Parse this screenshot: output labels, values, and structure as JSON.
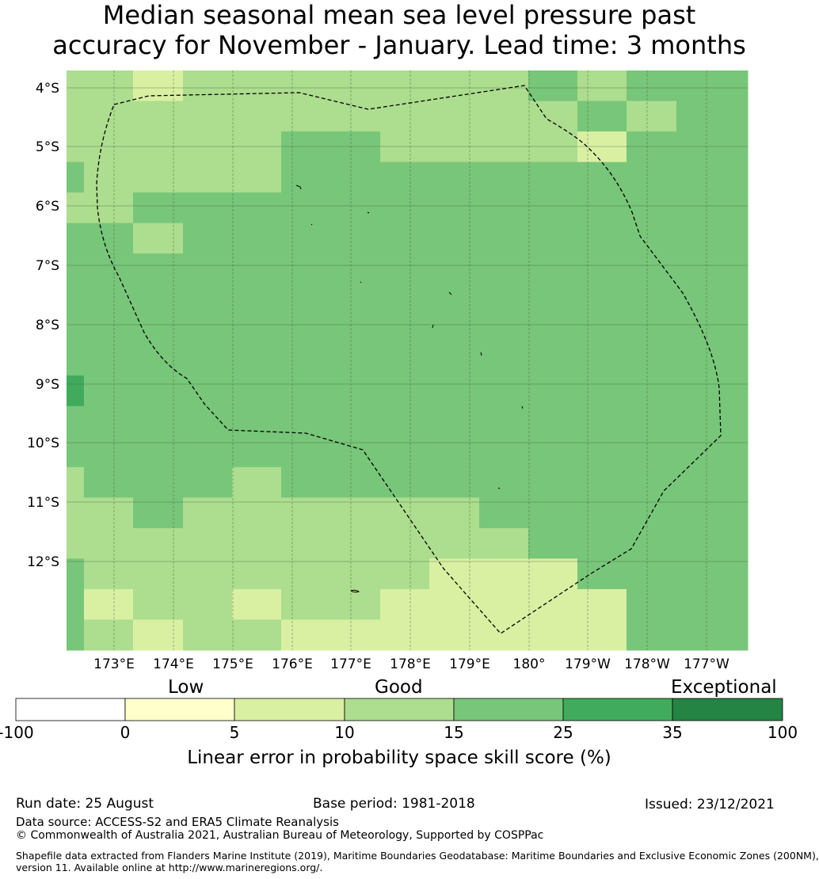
{
  "title": {
    "line1": "Median seasonal mean sea level pressure past",
    "line2": "accuracy for November - January. Lead time: 3 months"
  },
  "map": {
    "lat_labels": [
      "4°S",
      "5°S",
      "6°S",
      "7°S",
      "8°S",
      "9°S",
      "10°S",
      "11°S",
      "12°S"
    ],
    "lon_labels": [
      "173°E",
      "174°E",
      "175°E",
      "176°E",
      "177°E",
      "178°E",
      "179°E",
      "180°",
      "179°W",
      "178°W",
      "177°W"
    ],
    "cell_value_bins": [
      "5-10",
      "10-15",
      "15-25",
      "25-35"
    ],
    "grid": [
      [
        "10-15",
        "10-15",
        "5-10",
        "10-15",
        "10-15",
        "10-15",
        "10-15",
        "10-15",
        "10-15",
        "10-15",
        "15-25",
        "10-15",
        "15-25",
        "15-25"
      ],
      [
        "10-15",
        "10-15",
        "10-15",
        "10-15",
        "10-15",
        "10-15",
        "10-15",
        "10-15",
        "10-15",
        "10-15",
        "10-15",
        "15-25",
        "10-15",
        "15-25"
      ],
      [
        "10-15",
        "10-15",
        "10-15",
        "10-15",
        "10-15",
        "15-25",
        "15-25",
        "10-15",
        "10-15",
        "10-15",
        "10-15",
        "5-10",
        "15-25",
        "15-25"
      ],
      [
        "15-25",
        "10-15",
        "10-15",
        "10-15",
        "10-15",
        "15-25",
        "15-25",
        "15-25",
        "15-25",
        "15-25",
        "15-25",
        "15-25",
        "15-25",
        "15-25"
      ],
      [
        "10-15",
        "10-15",
        "15-25",
        "15-25",
        "15-25",
        "15-25",
        "15-25",
        "15-25",
        "15-25",
        "15-25",
        "15-25",
        "15-25",
        "15-25",
        "15-25"
      ],
      [
        "15-25",
        "15-25",
        "10-15",
        "15-25",
        "15-25",
        "15-25",
        "15-25",
        "15-25",
        "15-25",
        "15-25",
        "15-25",
        "15-25",
        "15-25",
        "15-25"
      ],
      [
        "15-25",
        "15-25",
        "15-25",
        "15-25",
        "15-25",
        "15-25",
        "15-25",
        "15-25",
        "15-25",
        "15-25",
        "15-25",
        "15-25",
        "15-25",
        "15-25"
      ],
      [
        "15-25",
        "15-25",
        "15-25",
        "15-25",
        "15-25",
        "15-25",
        "15-25",
        "15-25",
        "15-25",
        "15-25",
        "15-25",
        "15-25",
        "15-25",
        "15-25"
      ],
      [
        "15-25",
        "15-25",
        "15-25",
        "15-25",
        "15-25",
        "15-25",
        "15-25",
        "15-25",
        "15-25",
        "15-25",
        "15-25",
        "15-25",
        "15-25",
        "15-25"
      ],
      [
        "15-25",
        "15-25",
        "15-25",
        "15-25",
        "15-25",
        "15-25",
        "15-25",
        "15-25",
        "15-25",
        "15-25",
        "15-25",
        "15-25",
        "15-25",
        "15-25"
      ],
      [
        "25-35",
        "15-25",
        "15-25",
        "15-25",
        "15-25",
        "15-25",
        "15-25",
        "15-25",
        "15-25",
        "15-25",
        "15-25",
        "15-25",
        "15-25",
        "15-25"
      ],
      [
        "15-25",
        "15-25",
        "15-25",
        "15-25",
        "15-25",
        "15-25",
        "15-25",
        "15-25",
        "15-25",
        "15-25",
        "15-25",
        "15-25",
        "15-25",
        "15-25"
      ],
      [
        "15-25",
        "15-25",
        "15-25",
        "15-25",
        "15-25",
        "15-25",
        "15-25",
        "15-25",
        "15-25",
        "15-25",
        "15-25",
        "15-25",
        "15-25",
        "15-25"
      ],
      [
        "10-15",
        "15-25",
        "15-25",
        "15-25",
        "10-15",
        "15-25",
        "15-25",
        "15-25",
        "15-25",
        "15-25",
        "15-25",
        "15-25",
        "15-25",
        "15-25"
      ],
      [
        "10-15",
        "10-15",
        "15-25",
        "10-15",
        "10-15",
        "10-15",
        "10-15",
        "10-15",
        "10-15",
        "15-25",
        "15-25",
        "15-25",
        "15-25",
        "15-25"
      ],
      [
        "10-15",
        "10-15",
        "10-15",
        "10-15",
        "10-15",
        "10-15",
        "10-15",
        "10-15",
        "10-15",
        "10-15",
        "15-25",
        "15-25",
        "15-25",
        "15-25"
      ],
      [
        "15-25",
        "10-15",
        "10-15",
        "10-15",
        "10-15",
        "10-15",
        "10-15",
        "10-15",
        "5-10",
        "5-10",
        "5-10",
        "15-25",
        "15-25",
        "15-25"
      ],
      [
        "15-25",
        "5-10",
        "10-15",
        "10-15",
        "5-10",
        "10-15",
        "10-15",
        "5-10",
        "5-10",
        "5-10",
        "5-10",
        "5-10",
        "15-25",
        "15-25"
      ],
      [
        "15-25",
        "10-15",
        "5-10",
        "10-15",
        "10-15",
        "5-10",
        "5-10",
        "5-10",
        "5-10",
        "5-10",
        "5-10",
        "5-10",
        "15-25",
        "15-25"
      ]
    ]
  },
  "colorbar": {
    "category_labels": [
      "Low",
      "Good",
      "Exceptional"
    ],
    "ticks": [
      "-100",
      "0",
      "5",
      "10",
      "15",
      "25",
      "35",
      "100"
    ],
    "colors": [
      "#ffffff",
      "#ffffcc",
      "#d9f0a3",
      "#addd8e",
      "#78c679",
      "#41ab5d",
      "#238443"
    ],
    "label": "Linear error in probability space skill score (%)"
  },
  "footer": {
    "run_date": "Run date: 25 August",
    "base_period": "Base period: 1981-2018",
    "issued": "Issued: 23/12/2021",
    "data_source": "Data source: ACCESS-S2 and ERA5 Climate Reanalysis",
    "copyright": "© Commonwealth of Australia 2021, Australian Bureau of Meteorology, Supported by COSPPac",
    "shapefile_line1": "Shapefile data extracted from Flanders Marine Institute (2019), Maritime Boundaries Geodatabase: Maritime Boundaries and Exclusive Economic Zones (200NM),",
    "shapefile_line2": "version 11. Available online at http://www.marineregions.org/."
  }
}
